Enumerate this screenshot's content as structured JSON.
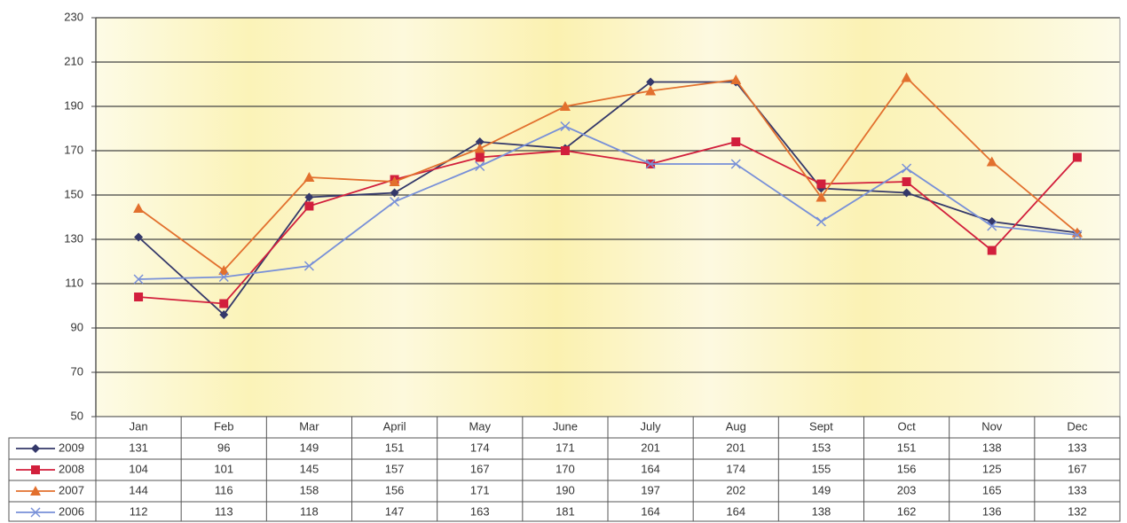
{
  "chart_data": {
    "type": "line",
    "categories": [
      "Jan",
      "Feb",
      "Mar",
      "April",
      "May",
      "June",
      "July",
      "Aug",
      "Sept",
      "Oct",
      "Nov",
      "Dec"
    ],
    "series": [
      {
        "name": "2009",
        "color": "#34386a",
        "marker": "diamond",
        "values": [
          131,
          96,
          149,
          151,
          174,
          171,
          201,
          201,
          153,
          151,
          138,
          133
        ]
      },
      {
        "name": "2008",
        "color": "#d21f3c",
        "marker": "square",
        "values": [
          104,
          101,
          145,
          157,
          167,
          170,
          164,
          174,
          155,
          156,
          125,
          167
        ]
      },
      {
        "name": "2007",
        "color": "#e2702e",
        "marker": "triangle",
        "values": [
          144,
          116,
          158,
          156,
          171,
          190,
          197,
          202,
          149,
          203,
          165,
          133
        ]
      },
      {
        "name": "2006",
        "color": "#7890d8",
        "marker": "x",
        "values": [
          112,
          113,
          118,
          147,
          163,
          181,
          164,
          164,
          138,
          162,
          136,
          132
        ]
      }
    ],
    "ylim": [
      50,
      230
    ],
    "yticks": [
      50,
      70,
      90,
      110,
      130,
      150,
      170,
      190,
      210,
      230
    ],
    "grid": true
  }
}
